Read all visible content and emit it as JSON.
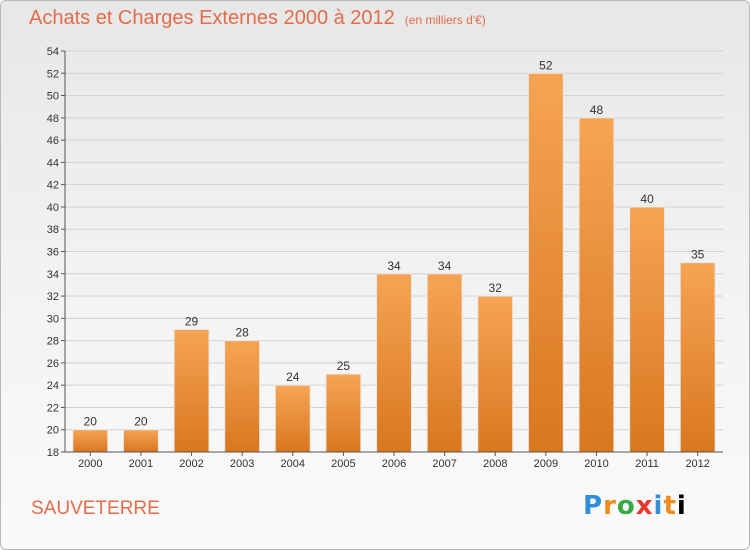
{
  "chart_data": {
    "type": "bar",
    "title": "Achats et Charges Externes 2000 à 2012",
    "unit_note": "(en milliers d'€)",
    "categories": [
      "2000",
      "2001",
      "2002",
      "2003",
      "2004",
      "2005",
      "2006",
      "2007",
      "2008",
      "2009",
      "2010",
      "2011",
      "2012"
    ],
    "values": [
      20,
      20,
      29,
      28,
      24,
      25,
      34,
      34,
      32,
      52,
      48,
      40,
      35
    ],
    "ylim": [
      18,
      54
    ],
    "yticks": [
      18,
      20,
      22,
      24,
      26,
      28,
      30,
      32,
      34,
      36,
      38,
      40,
      42,
      44,
      46,
      48,
      50,
      52,
      54
    ],
    "grid": true,
    "bar_color_top": "#f6a454",
    "bar_color_bottom": "#d9771f"
  },
  "city": "SAUVETERRE",
  "logo": {
    "letters": [
      "P",
      "r",
      "o",
      "x",
      "i",
      "t",
      "i"
    ]
  }
}
